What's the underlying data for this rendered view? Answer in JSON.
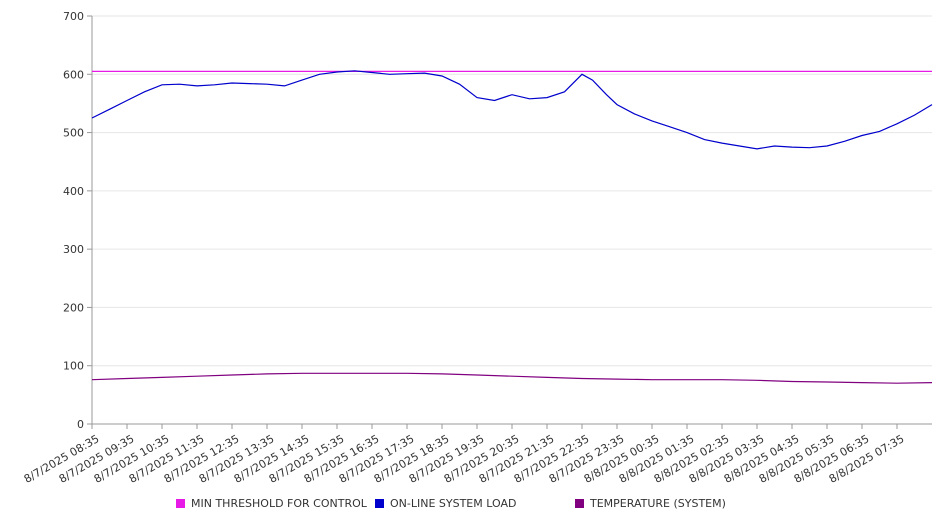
{
  "chart_data": {
    "type": "line",
    "ylim": [
      0,
      700
    ],
    "yticks": [
      0,
      100,
      200,
      300,
      400,
      500,
      600,
      700
    ],
    "x_labels": [
      "8/7/2025 08:35",
      "8/7/2025 09:35",
      "8/7/2025 10:35",
      "8/7/2025 11:35",
      "8/7/2025 12:35",
      "8/7/2025 13:35",
      "8/7/2025 14:35",
      "8/7/2025 15:35",
      "8/7/2025 16:35",
      "8/7/2025 17:35",
      "8/7/2025 18:35",
      "8/7/2025 19:35",
      "8/7/2025 20:35",
      "8/7/2025 21:35",
      "8/7/2025 22:35",
      "8/7/2025 23:35",
      "8/8/2025 00:35",
      "8/8/2025 01:35",
      "8/8/2025 02:35",
      "8/8/2025 03:35",
      "8/8/2025 04:35",
      "8/8/2025 05:35",
      "8/8/2025 06:35",
      "8/8/2025 07:35"
    ],
    "grid": true,
    "legend_position": "bottom",
    "series": [
      {
        "name": "MIN THRESHOLD FOR CONTROL",
        "color": "#e619e6",
        "x": [
          0,
          24
        ],
        "values": [
          605,
          605
        ]
      },
      {
        "name": "ON-LINE SYSTEM LOAD",
        "color": "#0000cc",
        "x": [
          0,
          0.5,
          1,
          1.5,
          2,
          2.5,
          3,
          3.5,
          4,
          4.5,
          5,
          5.5,
          6,
          6.5,
          7,
          7.5,
          8,
          8.5,
          9,
          9.5,
          10,
          10.5,
          11,
          11.5,
          12,
          12.5,
          13,
          13.5,
          14,
          14.3,
          14.7,
          15,
          15.5,
          16,
          16.5,
          17,
          17.5,
          18,
          18.5,
          19,
          19.5,
          20,
          20.5,
          21,
          21.5,
          22,
          22.5,
          23,
          23.5,
          24
        ],
        "values": [
          525,
          540,
          555,
          570,
          582,
          583,
          580,
          582,
          585,
          584,
          583,
          580,
          590,
          600,
          604,
          606,
          603,
          600,
          601,
          602,
          597,
          583,
          560,
          555,
          565,
          558,
          560,
          570,
          600,
          590,
          565,
          548,
          532,
          520,
          510,
          500,
          488,
          482,
          477,
          472,
          477,
          475,
          474,
          477,
          485,
          495,
          502,
          515,
          530,
          548
        ]
      },
      {
        "name": "TEMPERATURE (SYSTEM)",
        "color": "#800080",
        "x": [
          0,
          1,
          2,
          3,
          4,
          5,
          6,
          7,
          8,
          9,
          10,
          11,
          12,
          13,
          14,
          15,
          16,
          17,
          18,
          19,
          20,
          21,
          22,
          23,
          24
        ],
        "values": [
          76,
          78,
          80,
          82,
          84,
          86,
          87,
          87,
          87,
          87,
          86,
          84,
          82,
          80,
          78,
          77,
          76,
          76,
          76,
          75,
          73,
          72,
          71,
          70,
          71
        ]
      }
    ]
  }
}
